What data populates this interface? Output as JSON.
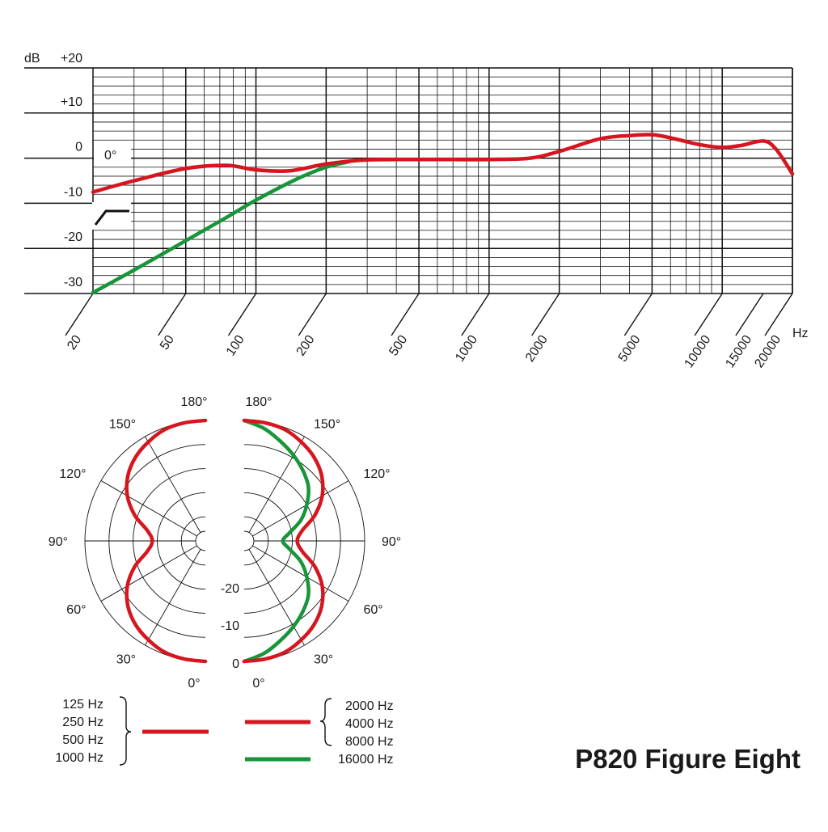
{
  "colors": {
    "red": "#d6161f",
    "green": "#18953a",
    "grid": "#111111",
    "text": "#1a1a1a"
  },
  "chart_data": [
    {
      "type": "line",
      "xscale": "log",
      "xlim": [
        20,
        20000
      ],
      "ylim": [
        -30,
        20
      ],
      "ylabel": "dB",
      "xunit": "Hz",
      "y_ticks": [
        {
          "value": 20,
          "label": "+20"
        },
        {
          "value": 10,
          "label": "+10"
        },
        {
          "value": 0,
          "label": "0"
        },
        {
          "value": -10,
          "label": "-10"
        },
        {
          "value": -20,
          "label": "-20"
        },
        {
          "value": -30,
          "label": "-30"
        }
      ],
      "x_ticks": [
        {
          "value": 20,
          "label": "20"
        },
        {
          "value": 50,
          "label": "50"
        },
        {
          "value": 100,
          "label": "100"
        },
        {
          "value": 200,
          "label": "200"
        },
        {
          "value": 500,
          "label": "500"
        },
        {
          "value": 1000,
          "label": "1000"
        },
        {
          "value": 2000,
          "label": "2000"
        },
        {
          "value": 5000,
          "label": "5000"
        },
        {
          "value": 10000,
          "label": "10000"
        },
        {
          "value": 15000,
          "label": "15000"
        },
        {
          "value": 20000,
          "label": "20000"
        }
      ],
      "annotation": "0°",
      "grid": true,
      "series": [
        {
          "color": "red",
          "x": [
            20,
            30,
            50,
            75,
            100,
            140,
            200,
            300,
            500,
            700,
            1000,
            1500,
            2000,
            3000,
            4000,
            5000,
            6000,
            8000,
            10000,
            12000,
            15000,
            17000,
            20000
          ],
          "y": [
            -7.5,
            -5,
            -2.3,
            -1.6,
            -2.6,
            -2.8,
            -1.3,
            -0.4,
            -0.3,
            -0.3,
            -0.3,
            0,
            1.5,
            4.3,
            5,
            5.2,
            4.5,
            3,
            2.4,
            2.8,
            3.8,
            2,
            -3.5
          ]
        },
        {
          "color": "green",
          "x": [
            20,
            30,
            50,
            75,
            100,
            150,
            200,
            250
          ],
          "y": [
            -29.8,
            -24.8,
            -18.3,
            -13.1,
            -9.3,
            -4.6,
            -2,
            -0.8
          ]
        }
      ]
    },
    {
      "type": "polar",
      "angle_labels": {
        "left": [
          {
            "deg": 180,
            "label": "180°"
          },
          {
            "deg": 150,
            "label": "150°"
          },
          {
            "deg": 120,
            "label": "120°"
          },
          {
            "deg": 90,
            "label": "90°"
          },
          {
            "deg": 60,
            "label": "60°"
          },
          {
            "deg": 30,
            "label": "30°"
          },
          {
            "deg": 0,
            "label": "0°"
          }
        ],
        "right": [
          {
            "deg": 180,
            "label": "180°"
          },
          {
            "deg": 150,
            "label": "150°"
          },
          {
            "deg": 120,
            "label": "120°"
          },
          {
            "deg": 90,
            "label": "90°"
          },
          {
            "deg": 60,
            "label": "60°"
          },
          {
            "deg": 30,
            "label": "30°"
          },
          {
            "deg": 0,
            "label": "0°"
          }
        ]
      },
      "level_labels": [
        "-20",
        "-10",
        "0"
      ],
      "ring_db": [
        0,
        -5,
        -10,
        -15,
        -20,
        -25
      ],
      "series": [
        {
          "side": "left",
          "color": "red",
          "angles": [
            0,
            10,
            20,
            30,
            40,
            50,
            60,
            70,
            80,
            90,
            100,
            110,
            120,
            130,
            140,
            150,
            160,
            170,
            180
          ],
          "db": [
            0,
            -0.1,
            -0.4,
            -1.3,
            -2.4,
            -4,
            -6.3,
            -9.4,
            -12.8,
            -14,
            -12.8,
            -9.4,
            -6.3,
            -4,
            -2.4,
            -1.3,
            -0.4,
            -0.1,
            0
          ]
        },
        {
          "side": "right",
          "color": "red",
          "angles": [
            0,
            10,
            20,
            30,
            40,
            50,
            60,
            70,
            80,
            90,
            100,
            110,
            120,
            130,
            140,
            150,
            160,
            170,
            180
          ],
          "db": [
            0,
            -0.1,
            -0.4,
            -1.3,
            -2.4,
            -4,
            -6.3,
            -9.4,
            -12.8,
            -14,
            -12.8,
            -9.4,
            -6.3,
            -4,
            -2.4,
            -1.3,
            -0.4,
            -0.1,
            0
          ]
        },
        {
          "side": "right",
          "color": "green",
          "angles": [
            0,
            10,
            20,
            30,
            40,
            50,
            60,
            70,
            80,
            90,
            100,
            110,
            120,
            130,
            140,
            150,
            160,
            170,
            180
          ],
          "db": [
            0,
            -1.3,
            -3,
            -4.5,
            -6,
            -7.6,
            -10,
            -12.5,
            -15.5,
            -17,
            -15.5,
            -12.5,
            -10,
            -7.6,
            -6,
            -4.5,
            -3,
            -1.3,
            0
          ]
        }
      ]
    }
  ],
  "legend": {
    "left_labels": [
      "125 Hz",
      "250 Hz",
      "500 Hz",
      "1000 Hz"
    ],
    "right_red_labels": [
      "2000 Hz",
      "4000 Hz",
      "8000 Hz"
    ],
    "right_green_label": "16000 Hz"
  },
  "product_title": "P820 Figure Eight"
}
